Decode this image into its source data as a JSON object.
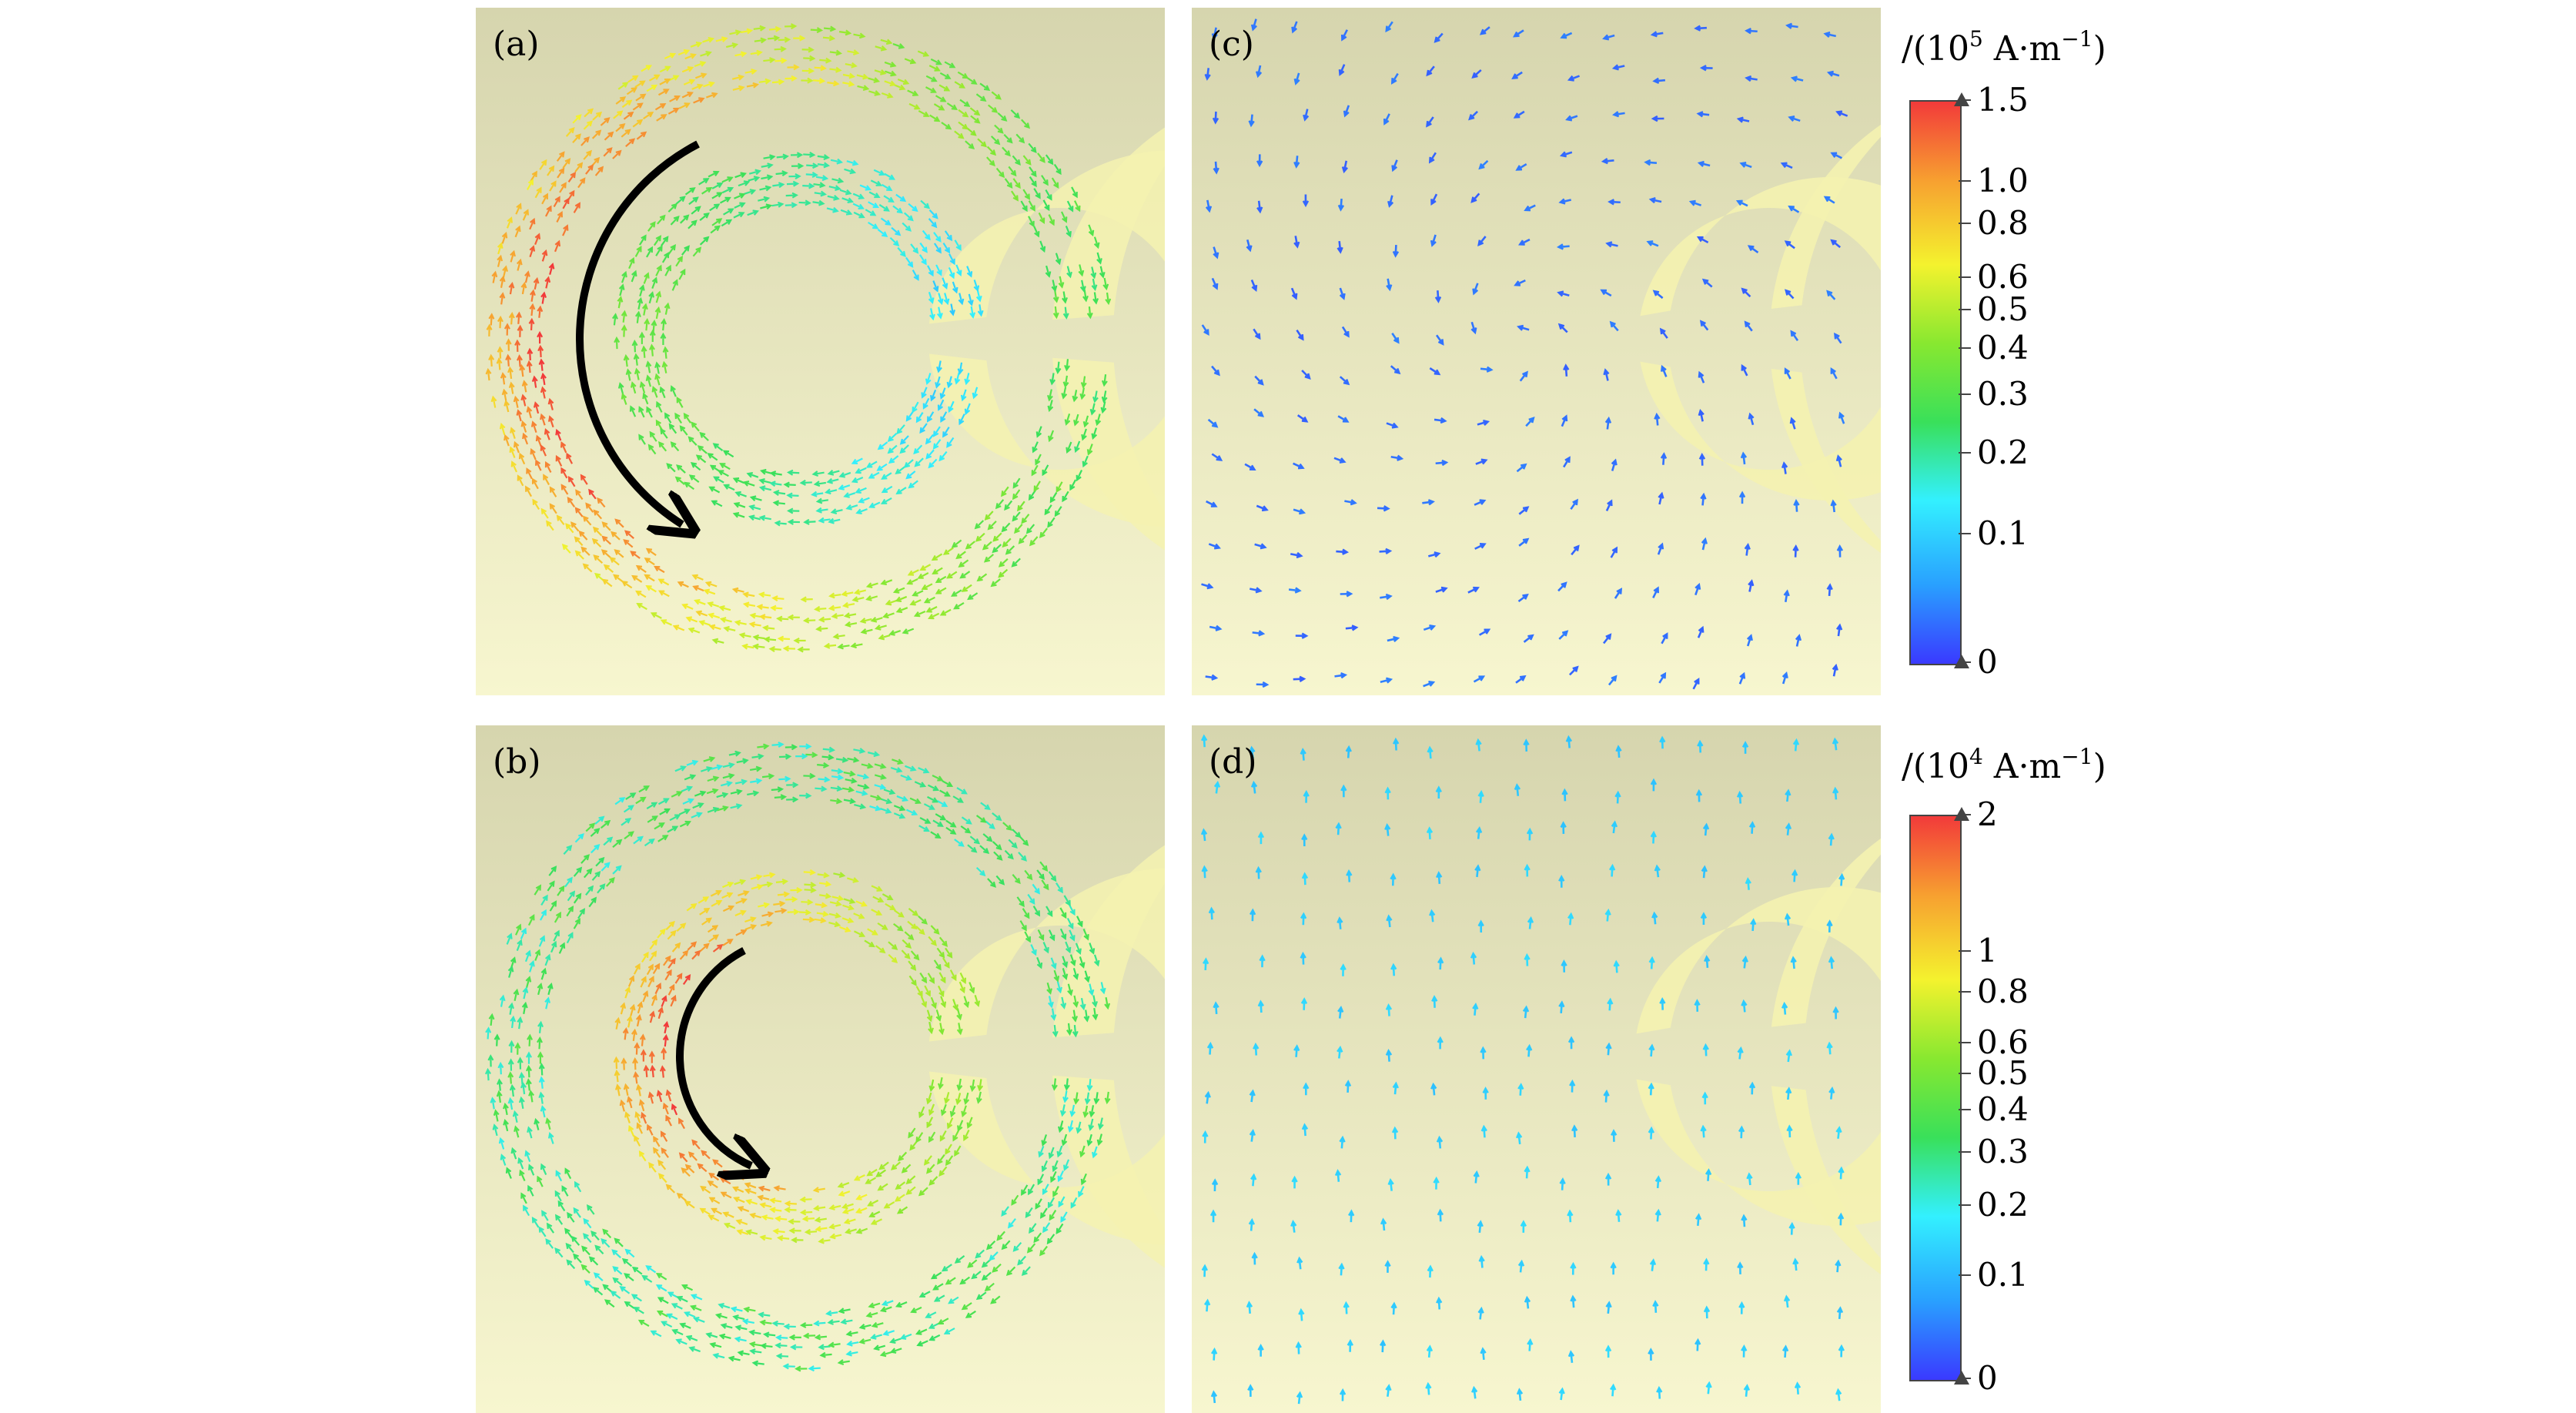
{
  "panels": [
    {
      "id": "a",
      "label": "(a)",
      "arrow_on_ring": "outer",
      "arrow_direction": "counter-clockwise"
    },
    {
      "id": "b",
      "label": "(b)",
      "arrow_on_ring": "inner",
      "arrow_direction": "counter-clockwise"
    },
    {
      "id": "c",
      "label": "(c)"
    },
    {
      "id": "d",
      "label": "(d)"
    }
  ],
  "colorbars": [
    {
      "title_prefix": "/(10",
      "title_exp": "5",
      "title_units": " A·m",
      "title_unit_exp": "−1",
      "title_suffix": ")",
      "min": 0,
      "max": 1.5,
      "tick_labels": [
        "1.5",
        "1.0",
        "0.8",
        "0.6",
        "0.5",
        "0.4",
        "0.3",
        "0.2",
        "0.1",
        "0"
      ],
      "tick_values": [
        1.5,
        1.0,
        0.8,
        0.6,
        0.5,
        0.4,
        0.3,
        0.2,
        0.1,
        0
      ]
    },
    {
      "title_prefix": "/(10",
      "title_exp": "4",
      "title_units": " A·m",
      "title_unit_exp": "−1",
      "title_suffix": ")",
      "min": 0,
      "max": 2,
      "tick_labels": [
        "2",
        "1",
        "0.8",
        "0.6",
        "0.5",
        "0.4",
        "0.3",
        "0.2",
        "0.1",
        "0"
      ],
      "tick_values": [
        2,
        1,
        0.8,
        0.6,
        0.5,
        0.4,
        0.3,
        0.2,
        0.1,
        0
      ]
    }
  ],
  "colors": {
    "background_top": "#d6d5ae",
    "background_bottom": "#f7f6cf",
    "ring": "#f4f2b0",
    "arrow": "#000000",
    "scale": [
      "#3a3aff",
      "#29a0ff",
      "#33f0ff",
      "#39e05a",
      "#88e830",
      "#f4f22e",
      "#f7a030",
      "#f23a3a"
    ]
  }
}
